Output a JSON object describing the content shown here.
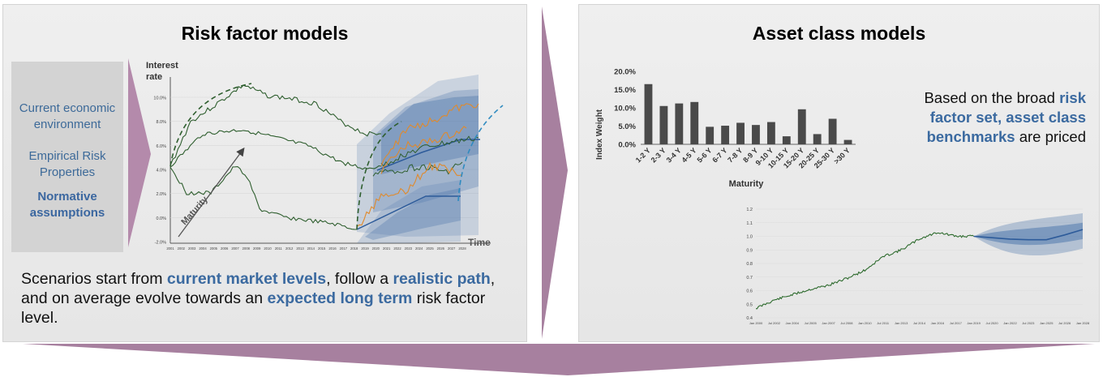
{
  "left": {
    "title": "Risk factor models",
    "factors": [
      "Current economic environment",
      "Empirical Risk Properties",
      "Normative assumptions"
    ],
    "chart": {
      "y_label_line1": "Interest",
      "y_label_line2": "rate",
      "x_label": "Time",
      "maturity_label": "Maturity",
      "y_ticks": [
        "10.0%",
        "8.0%",
        "6.0%",
        "4.0%",
        "2.0%",
        "0.0%",
        "-2.0%"
      ],
      "x_ticks": [
        "2001",
        "2002",
        "2003",
        "2004",
        "2005",
        "2006",
        "2007",
        "2008",
        "2009",
        "2010",
        "2011",
        "2012",
        "2013",
        "2014",
        "2015",
        "2016",
        "2017",
        "2018",
        "2019",
        "2020",
        "2021",
        "2022",
        "2023",
        "2024",
        "2025",
        "2026",
        "2027",
        "2028"
      ]
    },
    "caption": {
      "p1": "Scenarios start from ",
      "h1": "current market levels",
      "p2": ", follow a ",
      "h2": "realistic path",
      "p3": ", and on average evolve towards an ",
      "h3": "expected long term",
      "p4": " risk factor level."
    }
  },
  "right": {
    "title": "Asset class models",
    "description": {
      "p1": "Based on the broad ",
      "h1": "risk factor set, asset class benchmarks",
      "p2": " are priced"
    }
  },
  "colors": {
    "highlight_blue": "#3b6aa0",
    "chevron_mauve": "#a7809f",
    "band_blue": "#4f78ad",
    "history_green": "#2e5e2e",
    "scenario_orange": "#e08a2c"
  },
  "chart_data": [
    {
      "type": "bar",
      "title": "",
      "xlabel": "Maturity",
      "ylabel": "Index Weight",
      "ylim": [
        0,
        20
      ],
      "y_ticks": [
        "20.0%",
        "15.0%",
        "10.0%",
        "5.0%",
        "0.0%"
      ],
      "categories": [
        "1-2 Y",
        "2-3 Y",
        "3-4 Y",
        "4-5 Y",
        "5-6 Y",
        "6-7 Y",
        "7-8 Y",
        "8-9 Y",
        "9-10 Y",
        "10-15 Y",
        "15-20 Y",
        "20-25 Y",
        "25-30 Y",
        ">30 Y"
      ],
      "values": [
        16.5,
        10.5,
        11.2,
        11.6,
        4.8,
        5.1,
        5.9,
        5.3,
        6.1,
        2.2,
        9.6,
        2.8,
        7.0,
        1.2
      ]
    },
    {
      "type": "line",
      "title": "",
      "xlabel": "",
      "ylabel": "",
      "ylim": [
        0.4,
        1.2
      ],
      "y_ticks": [
        "1.2",
        "1.1",
        "1.0",
        "0.9",
        "0.8",
        "0.7",
        "0.6",
        "0.5",
        "0.4"
      ],
      "x_ticks": [
        "Jan 2000",
        "Jul 2002",
        "Jan 2004",
        "Jul 2005",
        "Jan 2007",
        "Jul 2008",
        "Jan 2010",
        "Jul 2011",
        "Jan 2013",
        "Jul 2014",
        "Jan 2016",
        "Jul 2017",
        "Jan 2019",
        "Jul 2020",
        "Jan 2022",
        "Jul 2023",
        "Jan 2025",
        "Jul 2026",
        "Jan 2028"
      ],
      "series": [
        {
          "x": [
            "Jan 2000",
            "Jul 2002",
            "Jan 2004",
            "Jul 2005",
            "Jan 2007",
            "Jul 2008",
            "Jan 2010",
            "Jul 2011",
            "Jan 2013",
            "Jul 2014",
            "Jan 2016",
            "Jul 2017",
            "Jan 2019"
          ],
          "values": [
            0.47,
            0.53,
            0.57,
            0.61,
            0.64,
            0.69,
            0.75,
            0.85,
            0.9,
            0.98,
            1.03,
            1.0,
            1.0
          ]
        },
        {
          "x": [
            "Jan 2019",
            "Jul 2020",
            "Jan 2022",
            "Jul 2023",
            "Jan 2025",
            "Jul 2026",
            "Jan 2028"
          ],
          "values": [
            1.0,
            0.99,
            0.98,
            0.975,
            0.975,
            1.01,
            1.05
          ]
        }
      ],
      "forecast_band": {
        "start": "Jan 2019",
        "end": "Jan 2028"
      }
    }
  ]
}
